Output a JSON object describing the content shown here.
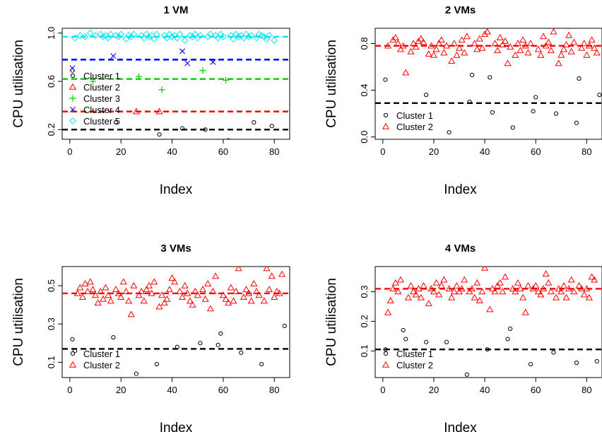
{
  "chart_data": [
    {
      "type": "scatter",
      "title": "1 VM",
      "xlabel": "Index",
      "ylabel": "CPU utilisation",
      "xlim": [
        -3,
        86
      ],
      "ylim": [
        0.12,
        1.04
      ],
      "xticks": [
        0,
        20,
        40,
        60,
        80
      ],
      "xtick_labels": [
        "0",
        "20",
        "40",
        "60",
        "80"
      ],
      "yticks": [
        0.2,
        0.6,
        1.0
      ],
      "ytick_labels": [
        "0.2",
        "0.6",
        "1.0"
      ],
      "legend_position": "left",
      "series": [
        {
          "name": "Cluster 1",
          "marker": "circle",
          "color": "#000000",
          "mean": 0.2,
          "x": [
            1,
            18,
            35,
            44,
            53,
            62,
            72,
            79
          ],
          "y": [
            0.69,
            0.26,
            0.16,
            0.21,
            0.2,
            0.11,
            0.26,
            0.23
          ]
        },
        {
          "name": "Cluster 2",
          "marker": "triangle",
          "color": "#FF0000",
          "mean": 0.35,
          "x": [
            26,
            35
          ],
          "y": [
            0.35,
            0.35
          ]
        },
        {
          "name": "Cluster 3",
          "marker": "plus",
          "color": "#00CC00",
          "mean": 0.62,
          "x": [
            9,
            27,
            36,
            52,
            61
          ],
          "y": [
            0.6,
            0.64,
            0.53,
            0.69,
            0.61
          ]
        },
        {
          "name": "Cluster 4",
          "marker": "cross",
          "color": "#0000FF",
          "mean": 0.78,
          "x": [
            1,
            17,
            44,
            46,
            56
          ],
          "y": [
            0.71,
            0.81,
            0.85,
            0.75,
            0.76
          ]
        },
        {
          "name": "Cluster 5",
          "marker": "diamond",
          "color": "#00E5EE",
          "mean": 0.97,
          "x": [
            2,
            4,
            6,
            8,
            10,
            12,
            13,
            14,
            15,
            16,
            18,
            19,
            20,
            22,
            23,
            24,
            25,
            28,
            29,
            30,
            31,
            32,
            33,
            34,
            37,
            38,
            39,
            40,
            41,
            42,
            43,
            45,
            47,
            48,
            49,
            50,
            51,
            54,
            55,
            57,
            58,
            59,
            60,
            63,
            64,
            65,
            66,
            67,
            68,
            69,
            70,
            71,
            73,
            74,
            75,
            76,
            77,
            78,
            80
          ],
          "y": [
            0.96,
            0.98,
            0.97,
            1.0,
            0.98,
            0.99,
            0.97,
            0.98,
            0.96,
            0.99,
            0.98,
            0.97,
            0.99,
            0.95,
            0.98,
            0.97,
            0.99,
            0.98,
            0.96,
            0.99,
            0.97,
            0.98,
            0.95,
            0.99,
            0.98,
            0.96,
            0.99,
            0.97,
            0.98,
            0.96,
            0.99,
            0.94,
            0.98,
            0.97,
            0.99,
            0.96,
            0.98,
            0.97,
            0.99,
            0.98,
            0.96,
            0.99,
            0.97,
            0.98,
            0.95,
            0.99,
            0.97,
            0.98,
            0.96,
            0.99,
            0.97,
            0.98,
            0.96,
            0.99,
            0.98,
            0.97,
            0.95,
            0.98,
            0.94
          ]
        }
      ]
    },
    {
      "type": "scatter",
      "title": "2 VMs",
      "xlabel": "Index",
      "ylabel": "CPU utilisation",
      "xlim": [
        -3,
        86
      ],
      "ylim": [
        -0.02,
        0.93
      ],
      "xticks": [
        0,
        20,
        40,
        60,
        80
      ],
      "xtick_labels": [
        "0",
        "20",
        "40",
        "60",
        "80"
      ],
      "yticks": [
        0.0,
        0.4,
        0.8
      ],
      "ytick_labels": [
        "0.0",
        "0.4",
        "0.8"
      ],
      "legend_position": "bottom-left",
      "series": [
        {
          "name": "Cluster 1",
          "marker": "circle",
          "color": "#000000",
          "mean": 0.29,
          "x": [
            1,
            17,
            26,
            34,
            35,
            42,
            43,
            51,
            59,
            60,
            68,
            76,
            77,
            85
          ],
          "y": [
            0.49,
            0.36,
            0.04,
            0.3,
            0.53,
            0.51,
            0.21,
            0.08,
            0.22,
            0.34,
            0.2,
            0.12,
            0.5,
            0.36
          ]
        },
        {
          "name": "Cluster 2",
          "marker": "triangle",
          "color": "#FF0000",
          "mean": 0.78,
          "x": [
            2,
            4,
            5,
            6,
            7,
            8,
            9,
            11,
            12,
            13,
            14,
            15,
            16,
            18,
            19,
            20,
            21,
            22,
            23,
            24,
            25,
            27,
            28,
            29,
            30,
            31,
            32,
            33,
            36,
            37,
            38,
            39,
            40,
            41,
            44,
            45,
            46,
            47,
            48,
            49,
            50,
            52,
            53,
            54,
            55,
            56,
            57,
            58,
            61,
            62,
            63,
            64,
            65,
            66,
            67,
            69,
            70,
            71,
            72,
            73,
            74,
            75,
            78,
            79,
            80,
            81,
            82,
            83,
            84
          ],
          "y": [
            0.78,
            0.83,
            0.85,
            0.8,
            0.75,
            0.78,
            0.55,
            0.73,
            0.8,
            0.77,
            0.82,
            0.84,
            0.81,
            0.71,
            0.78,
            0.7,
            0.75,
            0.8,
            0.83,
            0.72,
            0.78,
            0.65,
            0.8,
            0.7,
            0.76,
            0.83,
            0.72,
            0.86,
            0.8,
            0.75,
            0.84,
            0.76,
            0.88,
            0.9,
            0.8,
            0.74,
            0.85,
            0.79,
            0.82,
            0.63,
            0.77,
            0.7,
            0.8,
            0.74,
            0.83,
            0.78,
            0.72,
            0.8,
            0.75,
            0.7,
            0.86,
            0.78,
            0.81,
            0.74,
            0.9,
            0.63,
            0.7,
            0.75,
            0.79,
            0.87,
            0.73,
            0.81,
            0.76,
            0.8,
            0.7,
            0.78,
            0.83,
            0.76,
            0.72
          ]
        }
      ]
    },
    {
      "type": "scatter",
      "title": "3 VMs",
      "xlabel": "Index",
      "ylabel": "CPU utilisation",
      "xlim": [
        -3,
        86
      ],
      "ylim": [
        0.02,
        0.6
      ],
      "xticks": [
        0,
        20,
        40,
        60,
        80
      ],
      "xtick_labels": [
        "0",
        "20",
        "40",
        "60",
        "80"
      ],
      "yticks": [
        0.1,
        0.3,
        0.5
      ],
      "ytick_labels": [
        "0.1",
        "0.3",
        "0.5"
      ],
      "legend_position": "bottom-left",
      "series": [
        {
          "name": "Cluster 1",
          "marker": "circle",
          "color": "#000000",
          "mean": 0.17,
          "x": [
            1,
            2,
            17,
            26,
            34,
            42,
            51,
            58,
            59,
            67,
            75,
            84
          ],
          "y": [
            0.22,
            0.16,
            0.23,
            0.04,
            0.09,
            0.18,
            0.2,
            0.19,
            0.25,
            0.15,
            0.09,
            0.29
          ]
        },
        {
          "name": "Cluster 2",
          "marker": "triangle",
          "color": "#FF0000",
          "mean": 0.46,
          "x": [
            3,
            4,
            5,
            6,
            7,
            8,
            9,
            10,
            11,
            12,
            13,
            14,
            15,
            16,
            18,
            19,
            20,
            21,
            22,
            23,
            24,
            25,
            27,
            28,
            29,
            30,
            31,
            32,
            33,
            35,
            36,
            37,
            38,
            39,
            40,
            41,
            43,
            44,
            45,
            46,
            47,
            48,
            49,
            50,
            52,
            53,
            54,
            55,
            56,
            57,
            60,
            61,
            62,
            63,
            64,
            65,
            66,
            68,
            69,
            70,
            71,
            72,
            73,
            74,
            76,
            77,
            78,
            79,
            80,
            81,
            82,
            83
          ],
          "y": [
            0.46,
            0.49,
            0.44,
            0.51,
            0.47,
            0.52,
            0.48,
            0.45,
            0.41,
            0.47,
            0.43,
            0.49,
            0.45,
            0.42,
            0.48,
            0.46,
            0.44,
            0.52,
            0.47,
            0.42,
            0.35,
            0.5,
            0.45,
            0.47,
            0.42,
            0.48,
            0.5,
            0.46,
            0.52,
            0.39,
            0.45,
            0.41,
            0.43,
            0.48,
            0.54,
            0.52,
            0.47,
            0.44,
            0.5,
            0.46,
            0.42,
            0.4,
            0.47,
            0.45,
            0.48,
            0.43,
            0.51,
            0.38,
            0.47,
            0.55,
            0.45,
            0.43,
            0.41,
            0.49,
            0.42,
            0.47,
            0.59,
            0.44,
            0.48,
            0.46,
            0.42,
            0.51,
            0.47,
            0.45,
            0.42,
            0.59,
            0.48,
            0.55,
            0.44,
            0.47,
            0.46,
            0.56
          ]
        }
      ]
    },
    {
      "type": "scatter",
      "title": "4 VMs",
      "xlabel": "Index",
      "ylabel": "CPU utilisation",
      "xlim": [
        -3,
        86
      ],
      "ylim": [
        0.01,
        0.385
      ],
      "xticks": [
        0,
        20,
        40,
        60,
        80
      ],
      "xtick_labels": [
        "0",
        "20",
        "40",
        "60",
        "80"
      ],
      "yticks": [
        0.1,
        0.2,
        0.3
      ],
      "ytick_labels": [
        "0.1",
        "0.2",
        "0.3"
      ],
      "legend_position": "bottom-left",
      "series": [
        {
          "name": "Cluster 1",
          "marker": "circle",
          "color": "#000000",
          "mean": 0.105,
          "x": [
            1,
            8,
            9,
            17,
            25,
            33,
            41,
            49,
            50,
            58,
            67,
            76,
            84
          ],
          "y": [
            0.105,
            0.17,
            0.14,
            0.13,
            0.13,
            0.02,
            0.105,
            0.14,
            0.175,
            0.055,
            0.095,
            0.06,
            0.065
          ]
        },
        {
          "name": "Cluster 2",
          "marker": "triangle",
          "color": "#FF0000",
          "mean": 0.31,
          "x": [
            2,
            3,
            4,
            5,
            6,
            7,
            10,
            11,
            12,
            13,
            14,
            15,
            16,
            18,
            19,
            20,
            21,
            22,
            23,
            24,
            26,
            27,
            28,
            29,
            30,
            31,
            32,
            34,
            35,
            36,
            37,
            38,
            39,
            40,
            42,
            43,
            44,
            45,
            46,
            47,
            48,
            51,
            52,
            53,
            54,
            55,
            56,
            57,
            59,
            60,
            61,
            62,
            63,
            64,
            65,
            66,
            68,
            69,
            70,
            71,
            72,
            73,
            74,
            75,
            77,
            78,
            79,
            80,
            81,
            82,
            83
          ],
          "y": [
            0.23,
            0.27,
            0.31,
            0.33,
            0.3,
            0.34,
            0.28,
            0.32,
            0.3,
            0.29,
            0.31,
            0.28,
            0.32,
            0.26,
            0.31,
            0.3,
            0.33,
            0.29,
            0.32,
            0.34,
            0.31,
            0.28,
            0.3,
            0.32,
            0.3,
            0.31,
            0.34,
            0.3,
            0.31,
            0.28,
            0.33,
            0.27,
            0.3,
            0.38,
            0.24,
            0.31,
            0.3,
            0.32,
            0.33,
            0.3,
            0.35,
            0.31,
            0.3,
            0.33,
            0.31,
            0.28,
            0.23,
            0.32,
            0.31,
            0.32,
            0.3,
            0.29,
            0.31,
            0.36,
            0.33,
            0.3,
            0.28,
            0.31,
            0.3,
            0.32,
            0.28,
            0.31,
            0.34,
            0.3,
            0.32,
            0.31,
            0.29,
            0.31,
            0.28,
            0.35,
            0.34
          ]
        }
      ]
    }
  ]
}
